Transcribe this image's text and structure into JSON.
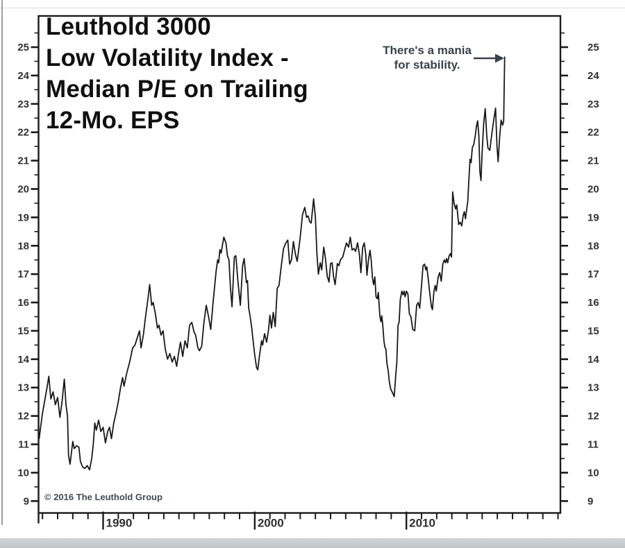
{
  "title": {
    "lines": [
      "Leuthold 3000",
      "Low Volatility Index -",
      "Median P/E on Trailing",
      "12-Mo. EPS"
    ]
  },
  "annotation": {
    "line1": "There's a mania",
    "line2": "for stability.",
    "arrow_icon": "right-arrow",
    "color": "#39414b"
  },
  "copyright": "© 2016 The Leuthold Group",
  "chart_data": {
    "type": "line",
    "title": "Leuthold 3000 Low Volatility Index - Median P/E on Trailing 12-Mo. EPS",
    "xlabel": "",
    "ylabel": "Median P/E",
    "grid": false,
    "legend": "none",
    "axis_color": "#1a1a1a",
    "line_color": "#181818",
    "label_color": "#333333",
    "xlim_years": [
      1985.74,
      2020.16
    ],
    "ylim": [
      8.58,
      26.1
    ],
    "y_ticks_labeled": [
      9,
      10,
      11,
      12,
      13,
      14,
      15,
      16,
      17,
      18,
      19,
      20,
      21,
      22,
      23,
      24,
      25
    ],
    "y_minor_ticks": [
      9.5,
      10.5,
      11.5,
      12.5,
      13.5,
      14.5,
      15.5,
      16.5,
      17.5,
      18.5,
      19.5,
      20.5,
      21.5,
      22.5,
      23.5,
      24.5,
      25.5
    ],
    "y_labels_both_sides": true,
    "x_ticks_labeled": [
      {
        "year": 1990,
        "label": "1990"
      },
      {
        "year": 2000,
        "label": "2000"
      },
      {
        "year": 2010,
        "label": "2010"
      }
    ],
    "x_minor_tick_years": [
      1986,
      1987,
      1988,
      1989,
      1991,
      1992,
      1993,
      1994,
      1995,
      1996,
      1997,
      1998,
      1999,
      2001,
      2002,
      2003,
      2004,
      2005,
      2006,
      2007,
      2008,
      2009,
      2011,
      2012,
      2013,
      2014,
      2015,
      2016,
      2017,
      2018,
      2019,
      2020
    ],
    "series": [
      {
        "name": "Leuthold 3000 Low Volatility Index Median P/E",
        "points": [
          [
            1985.78,
            11.2
          ],
          [
            1985.9,
            11.7
          ],
          [
            1986.0,
            12.1
          ],
          [
            1986.15,
            12.55
          ],
          [
            1986.3,
            13.0
          ],
          [
            1986.42,
            13.4
          ],
          [
            1986.55,
            12.6
          ],
          [
            1986.7,
            12.85
          ],
          [
            1986.85,
            12.4
          ],
          [
            1987.0,
            12.65
          ],
          [
            1987.15,
            11.95
          ],
          [
            1987.3,
            12.55
          ],
          [
            1987.44,
            13.3
          ],
          [
            1987.55,
            12.4
          ],
          [
            1987.65,
            12.0
          ],
          [
            1987.72,
            10.6
          ],
          [
            1987.82,
            10.3
          ],
          [
            1988.0,
            11.1
          ],
          [
            1988.1,
            10.85
          ],
          [
            1988.25,
            10.95
          ],
          [
            1988.4,
            10.9
          ],
          [
            1988.5,
            10.4
          ],
          [
            1988.65,
            10.2
          ],
          [
            1988.8,
            10.15
          ],
          [
            1988.95,
            10.25
          ],
          [
            1989.1,
            10.1
          ],
          [
            1989.25,
            10.5
          ],
          [
            1989.35,
            11.0
          ],
          [
            1989.45,
            11.75
          ],
          [
            1989.55,
            11.5
          ],
          [
            1989.7,
            11.85
          ],
          [
            1989.85,
            11.45
          ],
          [
            1990.0,
            11.6
          ],
          [
            1990.15,
            11.05
          ],
          [
            1990.3,
            11.45
          ],
          [
            1990.42,
            11.6
          ],
          [
            1990.55,
            11.2
          ],
          [
            1990.7,
            11.75
          ],
          [
            1990.85,
            12.1
          ],
          [
            1991.0,
            12.5
          ],
          [
            1991.15,
            13.0
          ],
          [
            1991.28,
            13.35
          ],
          [
            1991.38,
            13.05
          ],
          [
            1991.55,
            13.5
          ],
          [
            1991.75,
            13.9
          ],
          [
            1991.95,
            14.4
          ],
          [
            1992.1,
            14.5
          ],
          [
            1992.25,
            14.75
          ],
          [
            1992.4,
            15.0
          ],
          [
            1992.5,
            14.4
          ],
          [
            1992.65,
            14.85
          ],
          [
            1992.8,
            15.5
          ],
          [
            1992.95,
            16.1
          ],
          [
            1993.07,
            16.63
          ],
          [
            1993.2,
            15.9
          ],
          [
            1993.3,
            16.0
          ],
          [
            1993.45,
            15.6
          ],
          [
            1993.58,
            15.1
          ],
          [
            1993.68,
            15.2
          ],
          [
            1993.82,
            14.85
          ],
          [
            1993.95,
            15.0
          ],
          [
            1994.1,
            14.35
          ],
          [
            1994.25,
            14.0
          ],
          [
            1994.4,
            14.2
          ],
          [
            1994.55,
            13.9
          ],
          [
            1994.7,
            14.1
          ],
          [
            1994.85,
            13.75
          ],
          [
            1995.0,
            14.3
          ],
          [
            1995.1,
            14.6
          ],
          [
            1995.25,
            14.1
          ],
          [
            1995.4,
            14.65
          ],
          [
            1995.55,
            14.4
          ],
          [
            1995.7,
            15.2
          ],
          [
            1995.85,
            15.3
          ],
          [
            1996.0,
            14.95
          ],
          [
            1996.1,
            14.85
          ],
          [
            1996.25,
            14.4
          ],
          [
            1996.35,
            14.3
          ],
          [
            1996.5,
            14.45
          ],
          [
            1996.65,
            15.3
          ],
          [
            1996.8,
            15.9
          ],
          [
            1996.95,
            15.5
          ],
          [
            1997.1,
            15.05
          ],
          [
            1997.25,
            16.0
          ],
          [
            1997.35,
            16.55
          ],
          [
            1997.45,
            17.1
          ],
          [
            1997.55,
            17.5
          ],
          [
            1997.62,
            17.4
          ],
          [
            1997.7,
            17.86
          ],
          [
            1997.78,
            17.74
          ],
          [
            1997.96,
            18.3
          ],
          [
            1998.1,
            18.1
          ],
          [
            1998.2,
            17.65
          ],
          [
            1998.3,
            17.5
          ],
          [
            1998.4,
            16.5
          ],
          [
            1998.5,
            15.85
          ],
          [
            1998.65,
            17.6
          ],
          [
            1998.75,
            17.65
          ],
          [
            1998.9,
            16.7
          ],
          [
            1999.05,
            15.9
          ],
          [
            1999.2,
            17.3
          ],
          [
            1999.3,
            17.55
          ],
          [
            1999.45,
            16.7
          ],
          [
            1999.52,
            16.77
          ],
          [
            1999.6,
            15.8
          ],
          [
            1999.68,
            15.56
          ],
          [
            1999.8,
            15.1
          ],
          [
            1999.9,
            14.6
          ],
          [
            2000.0,
            14.15
          ],
          [
            2000.12,
            13.7
          ],
          [
            2000.2,
            13.63
          ],
          [
            2000.32,
            14.15
          ],
          [
            2000.45,
            14.65
          ],
          [
            2000.52,
            14.5
          ],
          [
            2000.65,
            14.9
          ],
          [
            2000.78,
            14.6
          ],
          [
            2000.9,
            15.0
          ],
          [
            2001.0,
            15.55
          ],
          [
            2001.1,
            15.1
          ],
          [
            2001.22,
            15.65
          ],
          [
            2001.35,
            15.15
          ],
          [
            2001.48,
            16.5
          ],
          [
            2001.6,
            16.6
          ],
          [
            2001.75,
            17.3
          ],
          [
            2001.9,
            17.9
          ],
          [
            2002.05,
            18.1
          ],
          [
            2002.18,
            18.2
          ],
          [
            2002.3,
            17.35
          ],
          [
            2002.42,
            17.5
          ],
          [
            2002.55,
            18.15
          ],
          [
            2002.68,
            17.7
          ],
          [
            2002.8,
            17.45
          ],
          [
            2003.0,
            18.3
          ],
          [
            2003.15,
            19.1
          ],
          [
            2003.3,
            19.35
          ],
          [
            2003.42,
            19.0
          ],
          [
            2003.52,
            19.05
          ],
          [
            2003.62,
            18.85
          ],
          [
            2003.72,
            18.8
          ],
          [
            2003.88,
            19.65
          ],
          [
            2004.0,
            19.0
          ],
          [
            2004.1,
            17.7
          ],
          [
            2004.2,
            17.0
          ],
          [
            2004.32,
            17.4
          ],
          [
            2004.42,
            17.15
          ],
          [
            2004.55,
            17.95
          ],
          [
            2004.65,
            17.6
          ],
          [
            2004.78,
            16.93
          ],
          [
            2004.9,
            16.72
          ],
          [
            2005.0,
            17.37
          ],
          [
            2005.1,
            17.4
          ],
          [
            2005.2,
            16.9
          ],
          [
            2005.3,
            16.63
          ],
          [
            2005.45,
            17.37
          ],
          [
            2005.55,
            17.3
          ],
          [
            2005.65,
            17.5
          ],
          [
            2005.8,
            17.6
          ],
          [
            2005.95,
            17.9
          ],
          [
            2006.05,
            18.1
          ],
          [
            2006.18,
            17.95
          ],
          [
            2006.3,
            18.3
          ],
          [
            2006.42,
            17.85
          ],
          [
            2006.55,
            17.9
          ],
          [
            2006.65,
            17.8
          ],
          [
            2006.78,
            18.1
          ],
          [
            2006.9,
            17.7
          ],
          [
            2007.0,
            17.05
          ],
          [
            2007.12,
            17.95
          ],
          [
            2007.22,
            18.1
          ],
          [
            2007.32,
            17.7
          ],
          [
            2007.4,
            16.96
          ],
          [
            2007.5,
            17.5
          ],
          [
            2007.6,
            17.84
          ],
          [
            2007.68,
            17.5
          ],
          [
            2007.76,
            16.87
          ],
          [
            2007.84,
            16.63
          ],
          [
            2007.92,
            16.9
          ],
          [
            2008.0,
            16.2
          ],
          [
            2008.08,
            16.13
          ],
          [
            2008.15,
            16.35
          ],
          [
            2008.25,
            15.53
          ],
          [
            2008.32,
            15.32
          ],
          [
            2008.38,
            15.53
          ],
          [
            2008.45,
            15.17
          ],
          [
            2008.52,
            14.64
          ],
          [
            2008.58,
            14.43
          ],
          [
            2008.65,
            14.35
          ],
          [
            2008.72,
            13.85
          ],
          [
            2008.8,
            13.6
          ],
          [
            2008.88,
            13.2
          ],
          [
            2008.96,
            12.96
          ],
          [
            2009.1,
            12.8
          ],
          [
            2009.2,
            12.68
          ],
          [
            2009.3,
            13.45
          ],
          [
            2009.37,
            13.87
          ],
          [
            2009.45,
            15.2
          ],
          [
            2009.52,
            15.3
          ],
          [
            2009.6,
            16.1
          ],
          [
            2009.7,
            16.4
          ],
          [
            2009.78,
            16.27
          ],
          [
            2009.85,
            16.4
          ],
          [
            2009.92,
            16.2
          ],
          [
            2010.0,
            16.4
          ],
          [
            2010.1,
            16.3
          ],
          [
            2010.2,
            15.6
          ],
          [
            2010.3,
            15.5
          ],
          [
            2010.42,
            15.05
          ],
          [
            2010.55,
            15.0
          ],
          [
            2010.68,
            15.9
          ],
          [
            2010.78,
            16.0
          ],
          [
            2010.88,
            15.8
          ],
          [
            2011.0,
            16.6
          ],
          [
            2011.1,
            17.3
          ],
          [
            2011.2,
            17.35
          ],
          [
            2011.28,
            17.15
          ],
          [
            2011.35,
            17.26
          ],
          [
            2011.45,
            16.8
          ],
          [
            2011.55,
            16.3
          ],
          [
            2011.65,
            15.85
          ],
          [
            2011.72,
            15.75
          ],
          [
            2011.82,
            16.4
          ],
          [
            2011.9,
            16.6
          ],
          [
            2011.97,
            16.4
          ],
          [
            2012.1,
            16.9
          ],
          [
            2012.2,
            17.05
          ],
          [
            2012.3,
            16.75
          ],
          [
            2012.4,
            17.35
          ],
          [
            2012.5,
            17.5
          ],
          [
            2012.58,
            17.4
          ],
          [
            2012.65,
            17.55
          ],
          [
            2012.72,
            17.4
          ],
          [
            2012.82,
            17.64
          ],
          [
            2012.9,
            17.72
          ],
          [
            2012.98,
            17.6
          ],
          [
            2013.05,
            19.9
          ],
          [
            2013.15,
            19.5
          ],
          [
            2013.25,
            19.3
          ],
          [
            2013.32,
            19.44
          ],
          [
            2013.45,
            18.75
          ],
          [
            2013.55,
            18.83
          ],
          [
            2013.65,
            18.7
          ],
          [
            2013.75,
            19.07
          ],
          [
            2013.82,
            19.2
          ],
          [
            2013.9,
            18.95
          ],
          [
            2013.98,
            19.3
          ],
          [
            2014.05,
            19.56
          ],
          [
            2014.12,
            20.3
          ],
          [
            2014.2,
            21.05
          ],
          [
            2014.27,
            20.93
          ],
          [
            2014.35,
            21.45
          ],
          [
            2014.45,
            21.58
          ],
          [
            2014.55,
            21.9
          ],
          [
            2014.62,
            22.2
          ],
          [
            2014.7,
            22.4
          ],
          [
            2014.78,
            21.9
          ],
          [
            2014.85,
            20.6
          ],
          [
            2014.92,
            20.3
          ],
          [
            2015.0,
            21.3
          ],
          [
            2015.1,
            22.3
          ],
          [
            2015.2,
            22.83
          ],
          [
            2015.3,
            21.9
          ],
          [
            2015.38,
            21.45
          ],
          [
            2015.5,
            21.36
          ],
          [
            2015.65,
            22.0
          ],
          [
            2015.78,
            22.5
          ],
          [
            2015.88,
            22.85
          ],
          [
            2015.98,
            21.5
          ],
          [
            2016.05,
            20.96
          ],
          [
            2016.15,
            21.8
          ],
          [
            2016.25,
            22.43
          ],
          [
            2016.35,
            22.25
          ],
          [
            2016.42,
            22.4
          ],
          [
            2016.48,
            24.65
          ]
        ]
      }
    ]
  }
}
